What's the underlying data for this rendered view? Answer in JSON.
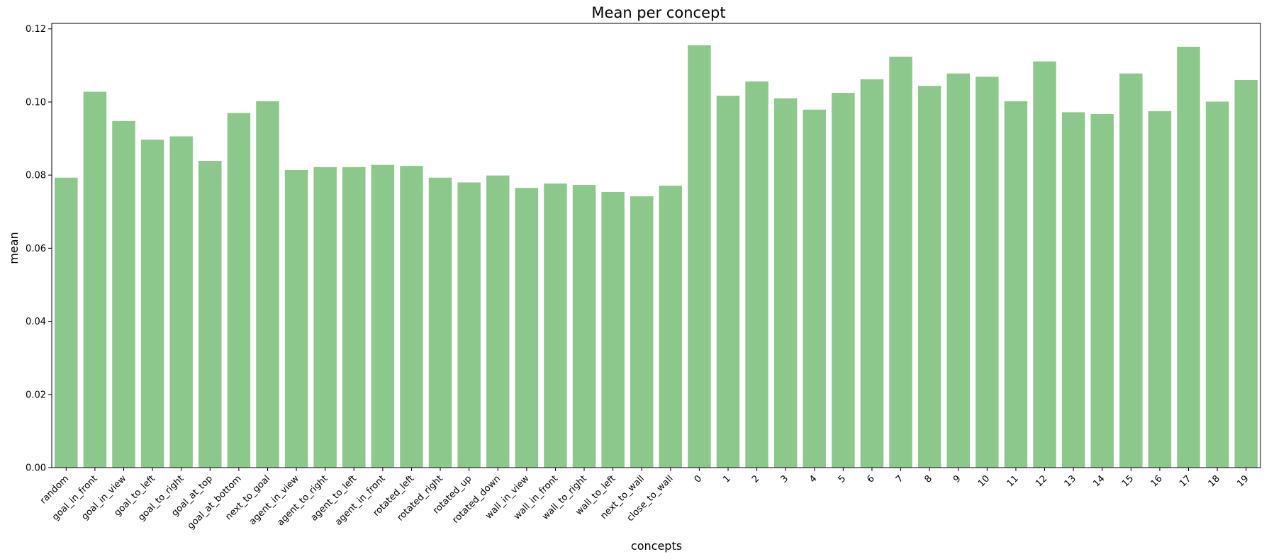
{
  "chart_data": {
    "type": "bar",
    "title": "Mean per concept",
    "xlabel": "concepts",
    "ylabel": "mean",
    "ylim": [
      0,
      0.1215
    ],
    "yticks": [
      "0.00",
      "0.02",
      "0.04",
      "0.06",
      "0.08",
      "0.10",
      "0.12"
    ],
    "grid": false,
    "bar_color": "#8cc88b",
    "categories": [
      "random",
      "goal_in_front",
      "goal_in_view",
      "goal_to_left",
      "goal_to_right",
      "goal_at_top",
      "goal_at_bottom",
      "next_to_goal",
      "agent_in_view",
      "agent_to_right",
      "agent_to_left",
      "agent_in_front",
      "rotated_left",
      "rotated_right",
      "rotated_up",
      "rotated_down",
      "wall_in_view",
      "wall_in_front",
      "wall_to_right",
      "wall_to_left",
      "next_to_wall",
      "close_to_wall",
      "0",
      "1",
      "2",
      "3",
      "4",
      "5",
      "6",
      "7",
      "8",
      "9",
      "10",
      "11",
      "12",
      "13",
      "14",
      "15",
      "16",
      "17",
      "18",
      "19"
    ],
    "values": [
      0.0793,
      0.1028,
      0.0948,
      0.0897,
      0.0906,
      0.0839,
      0.097,
      0.1002,
      0.0814,
      0.0822,
      0.0822,
      0.0828,
      0.0825,
      0.0793,
      0.078,
      0.0799,
      0.0765,
      0.0777,
      0.0773,
      0.0754,
      0.0742,
      0.0771,
      0.1155,
      0.1017,
      0.1056,
      0.101,
      0.0979,
      0.1025,
      0.1062,
      0.1124,
      0.1044,
      0.1078,
      0.1069,
      0.1002,
      0.1111,
      0.0972,
      0.0967,
      0.1078,
      0.0975,
      0.1151,
      0.1001,
      0.106
    ]
  }
}
